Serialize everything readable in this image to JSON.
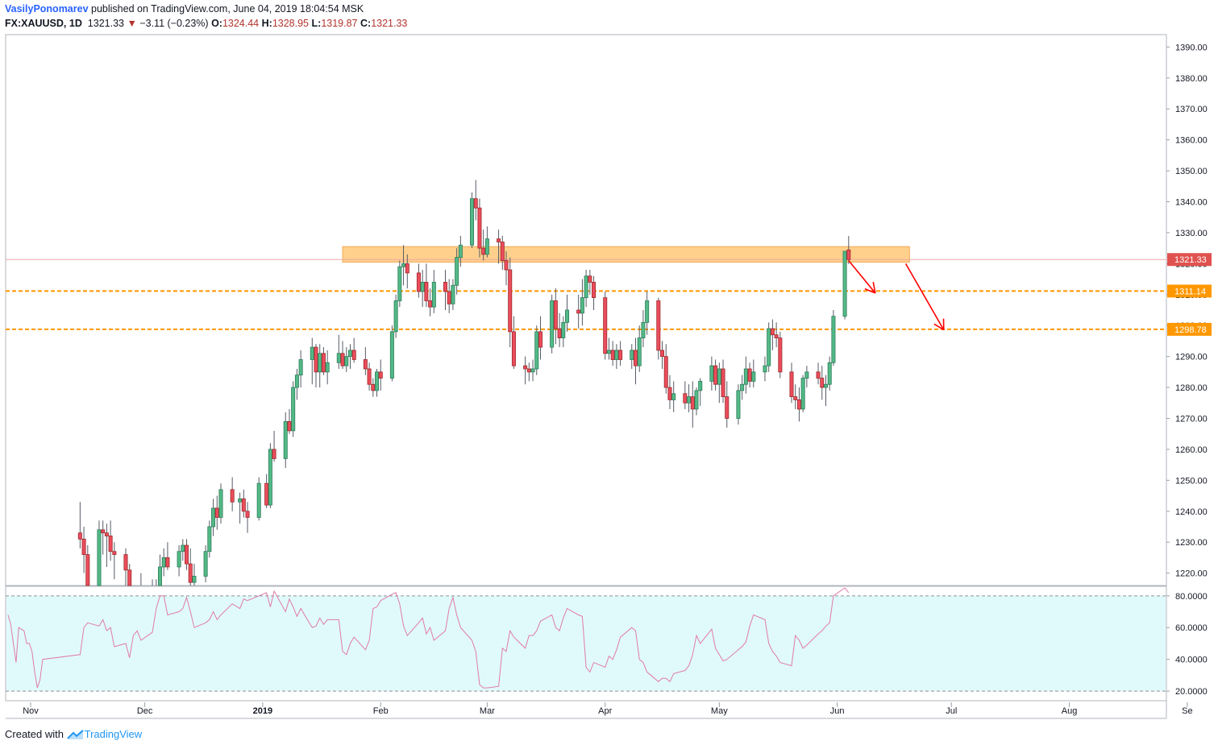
{
  "header": {
    "author": "VasilyPonomarev",
    "published": "published on TradingView.com, June 04, 2019 18:04:54 MSK",
    "symbol": "FX:XAUUSD, 1D",
    "last": "1321.33",
    "change": "−3.11 (−0.23%)",
    "o_label": "O:",
    "o": "1324.44",
    "h_label": "H:",
    "h": "1328.95",
    "l_label": "L:",
    "l": "1319.87",
    "c_label": "C:",
    "c": "1321.33"
  },
  "footer": {
    "created": "Created with",
    "brand": "TradingView"
  },
  "colors": {
    "up": "#53b987",
    "down": "#eb4d5c",
    "zone": "#ffcc80",
    "level": "#ff9800",
    "arrow": "#ff0000",
    "rsi": "#e07aa8",
    "rsi_bg": "#e0fafc"
  },
  "chart_data": {
    "type": "candlestick",
    "symbol": "XAUUSD",
    "interval": "1D",
    "price_axis": {
      "ticks": [
        "1390.00",
        "1380.00",
        "1370.00",
        "1360.00",
        "1350.00",
        "1340.00",
        "1330.00",
        "1320.00",
        "1310.00",
        "1300.00",
        "1290.00",
        "1280.00",
        "1270.00",
        "1260.00",
        "1250.00",
        "1240.00",
        "1230.00",
        "1220.00"
      ],
      "range": [
        1216,
        1394
      ]
    },
    "time_axis": {
      "labels": [
        "Nov",
        "Dec",
        "2019",
        "Feb",
        "Mar",
        "Apr",
        "May",
        "Jun",
        "Jul",
        "Aug",
        "Se"
      ]
    },
    "price_labels": [
      {
        "value": "1321.33",
        "color": "#e0524f"
      },
      {
        "value": "1311.14",
        "color": "#ff9800"
      },
      {
        "value": "1298.78",
        "color": "#ff9800"
      }
    ],
    "horizontal_levels": [
      1311.14,
      1298.78
    ],
    "resistance_zone": {
      "from": 1320.5,
      "to": 1325.5,
      "start": "2019-01-22",
      "end": "2019-06-20"
    },
    "arrows": [
      {
        "from": [
          "2019-06-04",
          1321
        ],
        "to": [
          "2019-06-11",
          1310.5
        ]
      },
      {
        "from": [
          "2019-06-19",
          1320
        ],
        "to": [
          "2019-06-29",
          1298.6
        ]
      }
    ],
    "candles": [
      [
        1233,
        1243,
        1228,
        1231
      ],
      [
        1231,
        1235,
        1220,
        1226
      ],
      [
        1226,
        1229,
        1205,
        1212
      ],
      [
        1212,
        1237,
        1210,
        1234
      ],
      [
        1234,
        1237,
        1226,
        1233
      ],
      [
        1233,
        1236,
        1222,
        1232
      ],
      [
        1232,
        1237,
        1224,
        1227
      ],
      [
        1227,
        1230,
        1218,
        1226
      ],
      [
        1226,
        1228,
        1213,
        1221
      ],
      [
        1221,
        1223,
        1208,
        1211
      ],
      [
        1211,
        1215,
        1205,
        1209
      ],
      [
        1209,
        1216,
        1207,
        1214
      ],
      [
        1214,
        1220,
        1208,
        1212
      ],
      [
        1212,
        1218,
        1209,
        1215
      ],
      [
        1215,
        1218,
        1211,
        1213
      ],
      [
        1213,
        1226,
        1211,
        1222
      ],
      [
        1222,
        1228,
        1219,
        1225
      ],
      [
        1225,
        1230,
        1221,
        1222
      ],
      [
        1222,
        1229,
        1219,
        1227
      ],
      [
        1227,
        1231,
        1224,
        1229
      ],
      [
        1229,
        1231,
        1221,
        1223
      ],
      [
        1223,
        1228,
        1214,
        1217
      ],
      [
        1217,
        1223,
        1211,
        1219
      ],
      [
        1219,
        1229,
        1217,
        1227
      ],
      [
        1227,
        1237,
        1225,
        1235
      ],
      [
        1235,
        1244,
        1232,
        1241
      ],
      [
        1241,
        1245,
        1234,
        1238
      ],
      [
        1238,
        1249,
        1236,
        1247
      ],
      [
        1247,
        1251,
        1240,
        1243
      ],
      [
        1243,
        1246,
        1236,
        1244
      ],
      [
        1244,
        1247,
        1238,
        1240
      ],
      [
        1240,
        1243,
        1233,
        1238
      ],
      [
        1238,
        1251,
        1237,
        1249
      ],
      [
        1249,
        1252,
        1241,
        1242
      ],
      [
        1242,
        1262,
        1241,
        1260
      ],
      [
        1260,
        1266,
        1256,
        1257
      ],
      [
        1257,
        1272,
        1254,
        1269
      ],
      [
        1269,
        1273,
        1265,
        1266
      ],
      [
        1266,
        1282,
        1264,
        1280
      ],
      [
        1280,
        1286,
        1276,
        1284
      ],
      [
        1284,
        1292,
        1280,
        1289
      ],
      [
        1289,
        1296,
        1281,
        1293
      ],
      [
        1293,
        1294,
        1280,
        1285
      ],
      [
        1285,
        1294,
        1280,
        1291
      ],
      [
        1291,
        1293,
        1284,
        1285
      ],
      [
        1285,
        1292,
        1281,
        1288
      ],
      [
        1288,
        1297,
        1286,
        1291
      ],
      [
        1291,
        1295,
        1286,
        1287
      ],
      [
        1287,
        1293,
        1285,
        1290
      ],
      [
        1290,
        1294,
        1286,
        1292
      ],
      [
        1292,
        1296,
        1288,
        1289
      ],
      [
        1289,
        1293,
        1284,
        1286
      ],
      [
        1286,
        1288,
        1279,
        1281
      ],
      [
        1281,
        1283,
        1277,
        1279
      ],
      [
        1279,
        1286,
        1277,
        1285
      ],
      [
        1285,
        1289,
        1279,
        1283
      ],
      [
        1283,
        1300,
        1282,
        1298
      ],
      [
        1298,
        1310,
        1296,
        1308
      ],
      [
        1308,
        1321,
        1306,
        1319
      ],
      [
        1319,
        1326,
        1313,
        1320
      ],
      [
        1320,
        1323,
        1312,
        1317
      ],
      [
        1317,
        1320,
        1309,
        1311
      ],
      [
        1311,
        1318,
        1306,
        1314
      ],
      [
        1314,
        1320,
        1306,
        1308
      ],
      [
        1308,
        1312,
        1303,
        1306
      ],
      [
        1306,
        1318,
        1304,
        1314
      ],
      [
        1314,
        1318,
        1305,
        1311
      ],
      [
        1311,
        1315,
        1304,
        1307
      ],
      [
        1307,
        1315,
        1305,
        1313
      ],
      [
        1313,
        1325,
        1310,
        1322
      ],
      [
        1322,
        1329,
        1319,
        1326
      ],
      [
        1326,
        1343,
        1325,
        1341
      ],
      [
        1341,
        1347,
        1334,
        1338
      ],
      [
        1338,
        1341,
        1322,
        1325
      ],
      [
        1325,
        1331,
        1321,
        1323
      ],
      [
        1323,
        1332,
        1322,
        1328
      ],
      [
        1328,
        1331,
        1320,
        1327
      ],
      [
        1327,
        1329,
        1318,
        1321
      ],
      [
        1321,
        1324,
        1313,
        1318
      ],
      [
        1318,
        1322,
        1293,
        1298
      ],
      [
        1298,
        1303,
        1286,
        1287
      ],
      [
        1287,
        1290,
        1281,
        1286
      ],
      [
        1286,
        1288,
        1282,
        1285
      ],
      [
        1285,
        1289,
        1282,
        1286
      ],
      [
        1286,
        1300,
        1284,
        1298
      ],
      [
        1298,
        1303,
        1289,
        1293
      ],
      [
        1293,
        1310,
        1291,
        1308
      ],
      [
        1308,
        1312,
        1294,
        1299
      ],
      [
        1299,
        1304,
        1293,
        1296
      ],
      [
        1296,
        1303,
        1293,
        1301
      ],
      [
        1301,
        1310,
        1298,
        1305
      ],
      [
        1305,
        1310,
        1299,
        1304
      ],
      [
        1304,
        1315,
        1300,
        1309
      ],
      [
        1309,
        1318,
        1306,
        1316
      ],
      [
        1316,
        1318,
        1310,
        1314
      ],
      [
        1314,
        1316,
        1305,
        1309
      ],
      [
        1309,
        1311,
        1289,
        1291
      ],
      [
        1291,
        1296,
        1289,
        1292
      ],
      [
        1292,
        1295,
        1287,
        1289
      ],
      [
        1289,
        1294,
        1286,
        1292
      ],
      [
        1292,
        1295,
        1287,
        1289
      ],
      [
        1289,
        1294,
        1286,
        1292
      ],
      [
        1292,
        1296,
        1281,
        1287
      ],
      [
        1287,
        1300,
        1285,
        1296
      ],
      [
        1296,
        1305,
        1293,
        1301
      ],
      [
        1301,
        1311,
        1297,
        1308
      ],
      [
        1308,
        1309,
        1289,
        1292
      ],
      [
        1292,
        1295,
        1286,
        1290
      ],
      [
        1290,
        1294,
        1278,
        1280
      ],
      [
        1280,
        1284,
        1273,
        1276
      ],
      [
        1276,
        1282,
        1272,
        1278
      ],
      [
        1278,
        1282,
        1273,
        1275
      ],
      [
        1275,
        1281,
        1272,
        1277
      ],
      [
        1277,
        1282,
        1267,
        1273
      ],
      [
        1273,
        1280,
        1271,
        1279
      ],
      [
        1279,
        1283,
        1274,
        1282
      ],
      [
        1282,
        1290,
        1279,
        1287
      ],
      [
        1287,
        1289,
        1279,
        1281
      ],
      [
        1281,
        1288,
        1275,
        1286
      ],
      [
        1286,
        1289,
        1275,
        1277
      ],
      [
        1277,
        1282,
        1267,
        1270
      ],
      [
        1270,
        1281,
        1268,
        1279
      ],
      [
        1279,
        1284,
        1276,
        1281
      ],
      [
        1281,
        1290,
        1278,
        1286
      ],
      [
        1286,
        1288,
        1280,
        1282
      ],
      [
        1282,
        1289,
        1280,
        1285
      ],
      [
        1285,
        1290,
        1282,
        1287
      ],
      [
        1287,
        1301,
        1285,
        1299
      ],
      [
        1299,
        1302,
        1292,
        1297
      ],
      [
        1297,
        1301,
        1293,
        1296
      ],
      [
        1296,
        1298,
        1283,
        1285
      ],
      [
        1285,
        1288,
        1275,
        1277
      ],
      [
        1277,
        1281,
        1273,
        1276
      ],
      [
        1276,
        1280,
        1269,
        1273
      ],
      [
        1273,
        1284,
        1272,
        1283
      ],
      [
        1283,
        1287,
        1280,
        1285
      ],
      [
        1285,
        1288,
        1281,
        1283
      ],
      [
        1283,
        1287,
        1276,
        1280
      ],
      [
        1280,
        1284,
        1274,
        1281
      ],
      [
        1281,
        1290,
        1279,
        1288
      ],
      [
        1288,
        1305,
        1287,
        1303
      ],
      [
        1303,
        1324,
        1302,
        1324
      ],
      [
        1324.44,
        1328.95,
        1319.87,
        1321.33
      ]
    ],
    "rsi": {
      "ticks": [
        "80.0000",
        "60.0000",
        "40.0000",
        "20.0000"
      ],
      "range": [
        17,
        86
      ],
      "levels": [
        80,
        20
      ],
      "values": [
        68,
        62,
        50,
        38,
        60,
        59,
        58,
        50,
        50,
        45,
        32,
        22,
        27,
        40,
        43,
        60,
        63,
        61,
        65,
        58,
        60,
        48,
        50,
        41,
        55,
        58,
        52,
        57,
        72,
        80,
        80,
        68,
        70,
        72,
        79,
        70,
        60,
        63,
        65,
        70,
        65,
        68,
        75,
        72,
        78,
        77,
        80,
        82,
        73,
        83,
        70,
        78,
        73,
        67,
        72,
        60,
        61,
        66,
        62,
        65,
        65,
        45,
        43,
        50,
        54,
        46,
        52,
        72,
        73,
        77,
        81,
        82,
        75,
        61,
        55,
        63,
        66,
        56,
        60,
        52,
        58,
        72,
        79,
        68,
        60,
        52,
        45,
        24,
        22,
        22,
        23,
        47,
        45,
        58,
        54,
        47,
        55,
        55,
        58,
        64,
        68,
        60,
        58,
        66,
        72,
        68,
        67,
        35,
        32,
        38,
        35,
        42,
        40,
        46,
        54,
        60,
        58,
        40,
        38,
        32,
        26,
        28,
        28,
        26,
        31,
        33,
        36,
        43,
        55,
        50,
        59,
        47,
        43,
        39,
        40,
        46,
        48,
        51,
        61,
        68,
        65,
        50,
        45,
        42,
        38,
        36,
        55,
        52,
        47,
        49,
        56,
        58,
        61,
        63,
        80,
        85,
        82
      ]
    }
  }
}
